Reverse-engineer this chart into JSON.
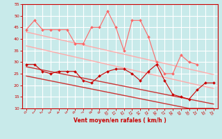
{
  "x": [
    0,
    1,
    2,
    3,
    4,
    5,
    6,
    7,
    8,
    9,
    10,
    11,
    12,
    13,
    14,
    15,
    16,
    17,
    18,
    19,
    20,
    21,
    22,
    23
  ],
  "series": [
    {
      "name": "rafales_line",
      "color": "#ff6666",
      "lw": 0.8,
      "marker": "D",
      "ms": 2.0,
      "y": [
        44,
        48,
        44,
        44,
        44,
        44,
        38,
        38,
        45,
        45,
        52,
        45,
        35,
        48,
        48,
        41,
        30,
        25,
        25,
        33,
        30,
        29,
        null,
        null
      ]
    },
    {
      "name": "trend_rafales_upper",
      "color": "#ffaaaa",
      "lw": 1.0,
      "marker": null,
      "ms": 0,
      "y": [
        43,
        42.2,
        41.4,
        40.6,
        39.8,
        39.0,
        38.2,
        37.4,
        36.6,
        35.8,
        35.0,
        34.2,
        33.4,
        32.6,
        31.8,
        31.0,
        30.2,
        29.4,
        28.6,
        27.8,
        27.0,
        26.2,
        25.4,
        24.6
      ]
    },
    {
      "name": "trend_rafales_lower",
      "color": "#ffaaaa",
      "lw": 1.0,
      "marker": null,
      "ms": 0,
      "y": [
        37,
        36.2,
        35.4,
        34.6,
        33.8,
        33.0,
        32.2,
        31.4,
        30.6,
        29.8,
        29.0,
        28.2,
        27.4,
        26.6,
        25.8,
        25.0,
        24.2,
        23.4,
        22.6,
        21.8,
        21.0,
        20.2,
        19.4,
        18.6
      ]
    },
    {
      "name": "vent_line",
      "color": "#cc0000",
      "lw": 0.8,
      "marker": "D",
      "ms": 2.0,
      "y": [
        29,
        29,
        26,
        25,
        26,
        26,
        26,
        22,
        21,
        24,
        26,
        27,
        27,
        25,
        22,
        26,
        29,
        22,
        16,
        15,
        14,
        18,
        21,
        21
      ]
    },
    {
      "name": "trend_vent_upper",
      "color": "#cc3333",
      "lw": 1.0,
      "marker": null,
      "ms": 0,
      "y": [
        28,
        27.3,
        26.6,
        25.9,
        25.2,
        24.5,
        23.8,
        23.1,
        22.4,
        21.7,
        21.0,
        20.3,
        19.6,
        18.9,
        18.2,
        17.5,
        16.8,
        16.1,
        15.4,
        14.7,
        14.0,
        13.3,
        12.6,
        11.9
      ]
    },
    {
      "name": "trend_vent_lower",
      "color": "#cc3333",
      "lw": 1.0,
      "marker": null,
      "ms": 0,
      "y": [
        24,
        23.3,
        22.6,
        21.9,
        21.2,
        20.5,
        19.8,
        19.1,
        18.4,
        17.7,
        17.0,
        16.3,
        15.6,
        14.9,
        14.2,
        13.5,
        12.8,
        12.1,
        11.4,
        10.7,
        10.0,
        10.0,
        10.0,
        10.0
      ]
    }
  ],
  "xlabel": "Vent moyen/en rafales ( km/h )",
  "ylim": [
    10,
    55
  ],
  "xlim": [
    -0.5,
    23.5
  ],
  "yticks": [
    10,
    15,
    20,
    25,
    30,
    35,
    40,
    45,
    50,
    55
  ],
  "xticks": [
    0,
    1,
    2,
    3,
    4,
    5,
    6,
    7,
    8,
    9,
    10,
    11,
    12,
    13,
    14,
    15,
    16,
    17,
    18,
    19,
    20,
    21,
    22,
    23
  ],
  "bg_color": "#c8eaea",
  "grid_color": "#ffffff",
  "tick_color": "#cc0000",
  "label_color": "#cc0000",
  "spine_color": "#cc0000"
}
